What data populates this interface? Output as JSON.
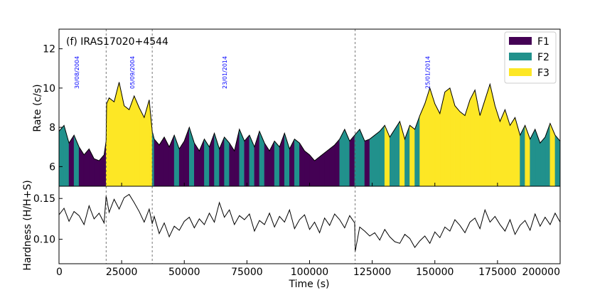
{
  "chart_data": [
    {
      "type": "area",
      "panel": "top",
      "title": "(f) IRAS17020+4544",
      "ylabel": "Rate (c/s)",
      "xlim": [
        0,
        200000
      ],
      "ylim": [
        5,
        13
      ],
      "yticks": [
        6,
        8,
        10,
        12
      ],
      "legend_position": "top-right",
      "legend": [
        {
          "name": "F1",
          "color": "#440154"
        },
        {
          "name": "F2",
          "color": "#21918c"
        },
        {
          "name": "F3",
          "color": "#fde725"
        }
      ],
      "date_labels": [
        {
          "x": 8000,
          "text": "30/08/2004"
        },
        {
          "x": 30000,
          "text": "05/09/2004"
        },
        {
          "x": 67000,
          "text": "23/01/2014"
        },
        {
          "x": 148000,
          "text": "25/01/2014"
        }
      ],
      "separators": [
        18800,
        37200,
        118200
      ],
      "series": [
        {
          "name": "Rate",
          "x": [
            0,
            2000,
            4000,
            6000,
            8000,
            10000,
            12000,
            14000,
            16000,
            18000,
            18800,
            19000,
            20000,
            22000,
            24000,
            26000,
            28000,
            30000,
            32000,
            34000,
            36000,
            37200,
            38000,
            40000,
            42000,
            44000,
            46000,
            48000,
            50000,
            52000,
            54000,
            56000,
            58000,
            60000,
            62000,
            64000,
            66000,
            68000,
            70000,
            72000,
            74000,
            76000,
            78000,
            80000,
            82000,
            84000,
            86000,
            88000,
            90000,
            92000,
            94000,
            96000,
            98000,
            100000,
            102000,
            104000,
            106000,
            108000,
            110000,
            112000,
            114000,
            116000,
            118000,
            120000,
            122000,
            124000,
            126000,
            128000,
            130000,
            132000,
            134000,
            136000,
            138000,
            140000,
            142000,
            144000,
            146000,
            148000,
            150000,
            152000,
            154000,
            156000,
            158000,
            160000,
            162000,
            164000,
            166000,
            168000,
            170000,
            172000,
            174000,
            176000,
            178000,
            180000,
            182000,
            184000,
            186000,
            188000,
            190000,
            192000,
            194000,
            196000,
            198000,
            200000
          ],
          "y": [
            7.8,
            8.1,
            7.2,
            7.6,
            7.0,
            6.6,
            6.9,
            6.4,
            6.3,
            6.6,
            7.3,
            9.2,
            9.5,
            9.3,
            10.3,
            9.1,
            8.9,
            9.6,
            9.0,
            8.5,
            9.4,
            7.8,
            7.4,
            7.1,
            7.5,
            7.0,
            7.6,
            6.9,
            7.3,
            8.0,
            7.2,
            6.8,
            7.4,
            7.0,
            7.7,
            6.9,
            7.5,
            7.2,
            6.8,
            7.9,
            7.3,
            7.6,
            7.0,
            7.8,
            7.2,
            6.8,
            7.3,
            7.0,
            7.7,
            6.9,
            7.4,
            7.2,
            6.8,
            6.6,
            6.3,
            6.5,
            6.7,
            6.9,
            7.1,
            7.4,
            7.9,
            7.3,
            7.6,
            7.9,
            7.3,
            7.4,
            7.6,
            7.8,
            8.1,
            7.5,
            7.9,
            8.3,
            7.4,
            8.1,
            7.9,
            8.6,
            9.2,
            10.0,
            9.2,
            8.7,
            9.8,
            10.0,
            9.1,
            8.8,
            8.6,
            9.4,
            9.9,
            8.6,
            9.4,
            10.2,
            9.1,
            8.3,
            8.9,
            8.1,
            8.5,
            7.6,
            8.1,
            7.4,
            7.9,
            7.2,
            7.5,
            8.2,
            7.6,
            7.3
          ],
          "state": [
            "F2",
            "F2",
            "F1",
            "F2",
            "F1",
            "F1",
            "F1",
            "F1",
            "F1",
            "F1",
            "F3",
            "F3",
            "F3",
            "F3",
            "F3",
            "F3",
            "F3",
            "F3",
            "F3",
            "F3",
            "F3",
            "F2",
            "F1",
            "F1",
            "F1",
            "F1",
            "F2",
            "F1",
            "F1",
            "F2",
            "F1",
            "F1",
            "F2",
            "F1",
            "F2",
            "F1",
            "F2",
            "F1",
            "F1",
            "F2",
            "F1",
            "F2",
            "F1",
            "F2",
            "F1",
            "F1",
            "F2",
            "F1",
            "F2",
            "F1",
            "F2",
            "F1",
            "F1",
            "F1",
            "F1",
            "F1",
            "F1",
            "F1",
            "F1",
            "F2",
            "F2",
            "F1",
            "F2",
            "F2",
            "F1",
            "F2",
            "F2",
            "F2",
            "F3",
            "F2",
            "F2",
            "F3",
            "F2",
            "F3",
            "F2",
            "F3",
            "F3",
            "F3",
            "F3",
            "F3",
            "F3",
            "F3",
            "F3",
            "F3",
            "F3",
            "F3",
            "F3",
            "F3",
            "F3",
            "F3",
            "F3",
            "F3",
            "F3",
            "F3",
            "F3",
            "F2",
            "F3",
            "F2",
            "F2",
            "F2",
            "F2",
            "F3",
            "F2",
            "F2"
          ]
        }
      ]
    },
    {
      "type": "line",
      "panel": "bottom",
      "xlabel": "Time (s)",
      "ylabel": "Hardness (H/H+S)",
      "xlim": [
        0,
        200000
      ],
      "ylim": [
        0.07,
        0.165
      ],
      "xticks": [
        0,
        25000,
        50000,
        75000,
        100000,
        125000,
        150000,
        175000,
        200000
      ],
      "yticks": [
        0.1,
        0.15
      ],
      "ytick_labels": [
        "0.10",
        "0.15"
      ],
      "separators": [
        18800,
        37200,
        118200
      ],
      "series": [
        {
          "name": "Hardness",
          "x": [
            0,
            2000,
            4000,
            6000,
            8000,
            10000,
            12000,
            14000,
            16000,
            18000,
            18800,
            20000,
            22000,
            24000,
            26000,
            28000,
            30000,
            32000,
            34000,
            36000,
            37200,
            38000,
            40000,
            42000,
            44000,
            46000,
            48000,
            50000,
            52000,
            54000,
            56000,
            58000,
            60000,
            62000,
            64000,
            66000,
            68000,
            70000,
            72000,
            74000,
            76000,
            78000,
            80000,
            82000,
            84000,
            86000,
            88000,
            90000,
            92000,
            94000,
            96000,
            98000,
            100000,
            102000,
            104000,
            106000,
            108000,
            110000,
            112000,
            114000,
            116000,
            118000,
            118200,
            120000,
            122000,
            124000,
            126000,
            128000,
            130000,
            132000,
            134000,
            136000,
            138000,
            140000,
            142000,
            144000,
            146000,
            148000,
            150000,
            152000,
            154000,
            156000,
            158000,
            160000,
            162000,
            164000,
            166000,
            168000,
            170000,
            172000,
            174000,
            176000,
            178000,
            180000,
            182000,
            184000,
            186000,
            188000,
            190000,
            192000,
            194000,
            196000,
            198000,
            200000
          ],
          "y": [
            0.13,
            0.138,
            0.122,
            0.134,
            0.129,
            0.118,
            0.141,
            0.125,
            0.132,
            0.12,
            0.153,
            0.133,
            0.149,
            0.137,
            0.151,
            0.155,
            0.145,
            0.134,
            0.121,
            0.137,
            0.119,
            0.128,
            0.107,
            0.12,
            0.103,
            0.116,
            0.111,
            0.122,
            0.127,
            0.114,
            0.125,
            0.118,
            0.132,
            0.121,
            0.145,
            0.127,
            0.136,
            0.118,
            0.129,
            0.124,
            0.131,
            0.11,
            0.123,
            0.118,
            0.132,
            0.115,
            0.128,
            0.121,
            0.136,
            0.113,
            0.124,
            0.13,
            0.112,
            0.121,
            0.108,
            0.126,
            0.117,
            0.131,
            0.124,
            0.114,
            0.129,
            0.12,
            0.085,
            0.115,
            0.11,
            0.104,
            0.108,
            0.099,
            0.112,
            0.103,
            0.097,
            0.095,
            0.106,
            0.101,
            0.09,
            0.098,
            0.104,
            0.095,
            0.109,
            0.102,
            0.115,
            0.11,
            0.124,
            0.117,
            0.108,
            0.121,
            0.126,
            0.113,
            0.136,
            0.121,
            0.128,
            0.118,
            0.11,
            0.124,
            0.106,
            0.117,
            0.123,
            0.111,
            0.131,
            0.116,
            0.127,
            0.118,
            0.132,
            0.121
          ]
        }
      ]
    }
  ]
}
